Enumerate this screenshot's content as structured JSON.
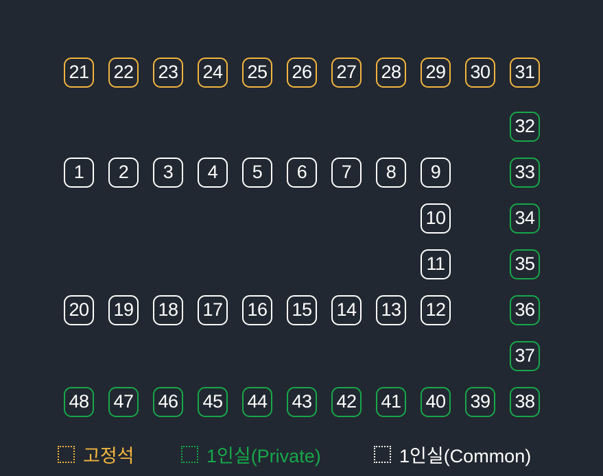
{
  "colors": {
    "background": "#222831",
    "fixed": "#f2b53f",
    "private": "#17a84a",
    "common": "#ffffff"
  },
  "seats": [
    {
      "number": "21",
      "type": "fixed"
    },
    {
      "number": "22",
      "type": "fixed"
    },
    {
      "number": "23",
      "type": "fixed"
    },
    {
      "number": "24",
      "type": "fixed"
    },
    {
      "number": "25",
      "type": "fixed"
    },
    {
      "number": "26",
      "type": "fixed"
    },
    {
      "number": "27",
      "type": "fixed"
    },
    {
      "number": "28",
      "type": "fixed"
    },
    {
      "number": "29",
      "type": "fixed"
    },
    {
      "number": "30",
      "type": "fixed"
    },
    {
      "number": "31",
      "type": "fixed"
    },
    {
      "number": "32",
      "type": "private"
    },
    {
      "number": "1",
      "type": "common"
    },
    {
      "number": "2",
      "type": "common"
    },
    {
      "number": "3",
      "type": "common"
    },
    {
      "number": "4",
      "type": "common"
    },
    {
      "number": "5",
      "type": "common"
    },
    {
      "number": "6",
      "type": "common"
    },
    {
      "number": "7",
      "type": "common"
    },
    {
      "number": "8",
      "type": "common"
    },
    {
      "number": "9",
      "type": "common"
    },
    {
      "number": "33",
      "type": "private"
    },
    {
      "number": "10",
      "type": "common"
    },
    {
      "number": "34",
      "type": "private"
    },
    {
      "number": "11",
      "type": "common"
    },
    {
      "number": "35",
      "type": "private"
    },
    {
      "number": "20",
      "type": "common"
    },
    {
      "number": "19",
      "type": "common"
    },
    {
      "number": "18",
      "type": "common"
    },
    {
      "number": "17",
      "type": "common"
    },
    {
      "number": "16",
      "type": "common"
    },
    {
      "number": "15",
      "type": "common"
    },
    {
      "number": "14",
      "type": "common"
    },
    {
      "number": "13",
      "type": "common"
    },
    {
      "number": "12",
      "type": "common"
    },
    {
      "number": "36",
      "type": "private"
    },
    {
      "number": "37",
      "type": "private"
    },
    {
      "number": "48",
      "type": "private"
    },
    {
      "number": "47",
      "type": "private"
    },
    {
      "number": "46",
      "type": "private"
    },
    {
      "number": "45",
      "type": "private"
    },
    {
      "number": "44",
      "type": "private"
    },
    {
      "number": "43",
      "type": "private"
    },
    {
      "number": "42",
      "type": "private"
    },
    {
      "number": "41",
      "type": "private"
    },
    {
      "number": "40",
      "type": "private"
    },
    {
      "number": "39",
      "type": "private"
    },
    {
      "number": "38",
      "type": "private"
    }
  ],
  "legend": {
    "fixed_label": "고정석",
    "private_label": "1인실(Private)",
    "common_label": "1인실(Common)"
  }
}
